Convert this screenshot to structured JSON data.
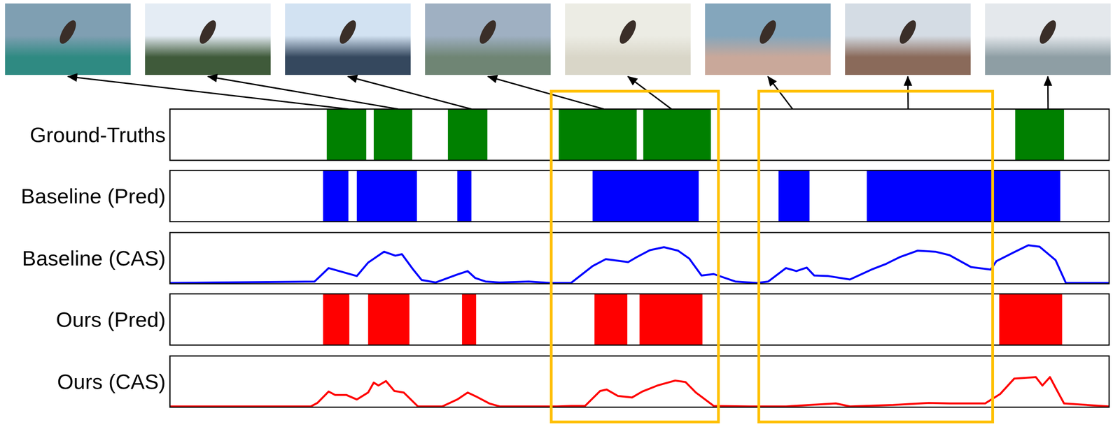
{
  "chart_data": {
    "type": "timeline",
    "xlim": [
      0,
      100
    ],
    "ylim": [
      0,
      1
    ],
    "tick_labels": false,
    "highlights": [
      [
        40.6,
        58.4
      ],
      [
        62.7,
        87.6
      ]
    ],
    "frame_times": [
      19.0,
      24.3,
      32.1,
      46.2,
      53.4,
      66.3,
      78.6,
      93.5
    ],
    "series": [
      {
        "name": "Ground-Truths",
        "type": "intervals",
        "color": "#008000",
        "intervals": [
          [
            16.7,
            20.9
          ],
          [
            21.7,
            25.8
          ],
          [
            29.6,
            33.8
          ],
          [
            41.4,
            49.7
          ],
          [
            50.4,
            57.6
          ],
          [
            90.0,
            95.2
          ]
        ]
      },
      {
        "name": "Baseline (Pred)",
        "type": "intervals",
        "color": "#0000ff",
        "intervals": [
          [
            16.3,
            19.0
          ],
          [
            19.9,
            26.3
          ],
          [
            30.6,
            32.1
          ],
          [
            45.0,
            56.3
          ],
          [
            64.8,
            68.1
          ],
          [
            74.2,
            94.8
          ]
        ]
      },
      {
        "name": "Baseline (CAS)",
        "type": "line",
        "color": "#0000ff",
        "x": [
          0,
          15.4,
          16.9,
          19.9,
          21.1,
          22.8,
          24.0,
          24.7,
          25.9,
          26.8,
          28.3,
          30.6,
          31.7,
          32.5,
          33.6,
          35.1,
          38.2,
          40.5,
          42.7,
          45.0,
          46.4,
          48.8,
          49.7,
          51.1,
          52.6,
          54.1,
          55.3,
          56.6,
          57.9,
          60.2,
          62.5,
          63.7,
          65.6,
          66.7,
          67.8,
          68.6,
          70.1,
          72.4,
          74.7,
          76.2,
          77.7,
          79.6,
          81.5,
          83.0,
          85.3,
          87.4,
          88.0,
          89.9,
          91.4,
          92.6,
          94.3,
          95.4,
          100
        ],
        "values": [
          0,
          0.03,
          0.3,
          0.14,
          0.41,
          0.63,
          0.55,
          0.58,
          0.27,
          0.06,
          0.01,
          0.17,
          0.24,
          0.1,
          0.03,
          0.01,
          0.03,
          0,
          0,
          0.34,
          0.48,
          0.42,
          0.52,
          0.66,
          0.72,
          0.65,
          0.49,
          0.15,
          0.18,
          0.03,
          0,
          0.03,
          0.3,
          0.24,
          0.31,
          0.15,
          0.14,
          0.07,
          0.27,
          0.38,
          0.52,
          0.65,
          0.63,
          0.56,
          0.32,
          0.27,
          0.44,
          0.62,
          0.76,
          0.73,
          0.46,
          0,
          0
        ]
      },
      {
        "name": "Ours (Pred)",
        "type": "intervals",
        "color": "#ff0000",
        "intervals": [
          [
            16.3,
            19.1
          ],
          [
            21.1,
            25.5
          ],
          [
            31.1,
            32.6
          ],
          [
            45.2,
            48.7
          ],
          [
            50.0,
            56.7
          ],
          [
            88.3,
            95.0
          ]
        ]
      },
      {
        "name": "Ours (CAS)",
        "type": "line",
        "color": "#ff0000",
        "x": [
          0,
          15.0,
          15.7,
          16.9,
          17.6,
          18.8,
          19.9,
          21.1,
          21.7,
          22.2,
          23.0,
          23.9,
          24.9,
          26.4,
          29.0,
          30.6,
          31.7,
          32.6,
          34.0,
          35.1,
          41.2,
          42.7,
          44.2,
          45.8,
          46.5,
          47.7,
          49.2,
          50.3,
          51.9,
          53.8,
          54.9,
          56.0,
          57.2,
          57.9,
          61.7,
          65.6,
          70.9,
          72.4,
          77.0,
          80.8,
          83.0,
          86.8,
          88.4,
          89.9,
          92.2,
          92.9,
          93.7,
          94.4,
          95.2,
          100
        ],
        "values": [
          0,
          0,
          0.07,
          0.3,
          0.23,
          0.23,
          0.14,
          0.28,
          0.48,
          0.42,
          0.51,
          0.31,
          0.28,
          0,
          0,
          0.14,
          0.28,
          0.2,
          0.06,
          0,
          0,
          0.01,
          0.01,
          0.31,
          0.34,
          0.21,
          0.18,
          0.3,
          0.42,
          0.52,
          0.49,
          0.28,
          0.11,
          0.01,
          0,
          0,
          0.06,
          0,
          0.03,
          0.07,
          0.06,
          0.06,
          0.25,
          0.56,
          0.59,
          0.42,
          0.59,
          0.34,
          0.06,
          0
        ]
      }
    ]
  }
}
